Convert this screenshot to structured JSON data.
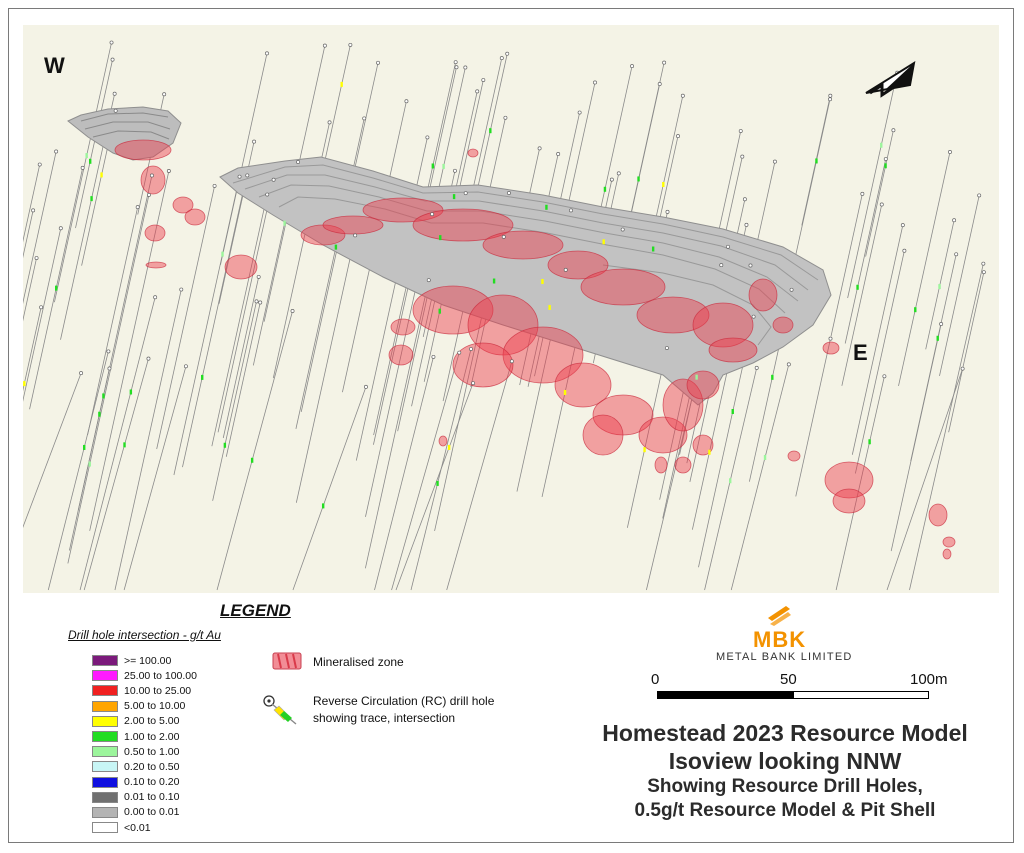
{
  "compass": {
    "west": "W",
    "east": "E"
  },
  "legend": {
    "title": "LEGEND",
    "subtitle": "Drill hole intersection - g/t Au",
    "grades": [
      {
        "label": ">= 100.00",
        "color": "#7b1a7b"
      },
      {
        "label": "25.00 to 100.00",
        "color": "#ff1aff"
      },
      {
        "label": "10.00 to 25.00",
        "color": "#f02020"
      },
      {
        "label": "5.00 to 10.00",
        "color": "#ffa500"
      },
      {
        "label": "2.00 to 5.00",
        "color": "#ffff00"
      },
      {
        "label": "1.00 to 2.00",
        "color": "#22dd22"
      },
      {
        "label": "0.50 to 1.00",
        "color": "#9cf59c"
      },
      {
        "label": "0.20 to 0.50",
        "color": "#c8f6f6"
      },
      {
        "label": "0.10 to 0.20",
        "color": "#1010e0"
      },
      {
        "label": "0.01 to 0.10",
        "color": "#707070"
      },
      {
        "label": "0.00 to 0.01",
        "color": "#b4b4b4"
      },
      {
        "label": "<0.01",
        "color": "#ffffff"
      }
    ],
    "mineralised_zone": "Mineralised zone",
    "rc_line1": "Reverse Circulation (RC) drill hole",
    "rc_line2": "showing trace, intersection"
  },
  "logo": {
    "letters": "MBK",
    "name": "METAL BANK LIMITED",
    "color": "#f39200"
  },
  "scale_bar": {
    "labels": [
      "0",
      "50",
      "100m"
    ]
  },
  "title": {
    "line1": "Homestead 2023 Resource Model",
    "line2": "Isoview looking NNW",
    "line3": "Showing  Resource Drill Holes,",
    "line4": "0.5g/t Resource Model & Pit Shell"
  },
  "colors": {
    "background": "#f4f3e6",
    "pit_shell": "#b9b9b9",
    "mineralised": "#ee3b4b",
    "drill_trace": "#8a8a8a"
  }
}
